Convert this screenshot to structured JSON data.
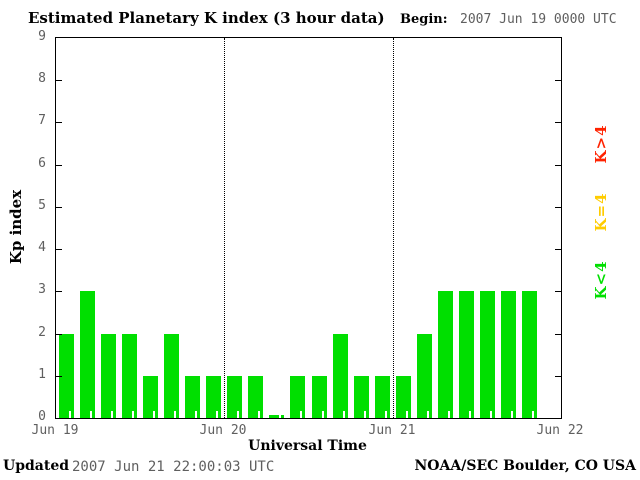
{
  "header": {
    "title": "Estimated Planetary K index (3 hour data)",
    "begin_label": "Begin:",
    "begin_value": "2007 Jun 19 0000 UTC"
  },
  "chart_data": {
    "type": "bar",
    "title": "Estimated Planetary K index (3 hour data)",
    "xlabel": "Universal Time",
    "ylabel": "Kp index",
    "ylim": [
      0,
      9
    ],
    "yticks": [
      0,
      1,
      2,
      3,
      4,
      5,
      6,
      7,
      8,
      9
    ],
    "x_day_labels": [
      "Jun 19",
      "Jun 20",
      "Jun 21",
      "Jun 22"
    ],
    "days_span": 3,
    "interval_hours": 3,
    "bars_per_day": 8,
    "values": [
      2,
      3,
      2,
      2,
      1,
      2,
      1,
      1,
      1,
      1,
      0,
      1,
      1,
      2,
      1,
      1,
      1,
      2,
      3,
      3,
      3,
      3,
      3
    ],
    "bar_color": "#00df00",
    "grid": "dotted vertical lines at interior day boundaries",
    "legend_position": "right side, labels rotated 90 degrees"
  },
  "legend": {
    "items": [
      {
        "label": "K>4",
        "color": "#ff2200"
      },
      {
        "label": "K=4",
        "color": "#ffcc00"
      },
      {
        "label": "K<4",
        "color": "#00df00"
      }
    ]
  },
  "footer": {
    "updated_label": "Updated",
    "updated_value": "2007 Jun 21 22:00:03 UTC",
    "credit": "NOAA/SEC Boulder, CO USA"
  },
  "colors": {
    "bar_green": "#00df00",
    "legend_red": "#ff2200",
    "legend_yellow": "#ffcc00",
    "text_gray": "#5f5f5f",
    "axis": "#000000",
    "background": "#ffffff"
  }
}
